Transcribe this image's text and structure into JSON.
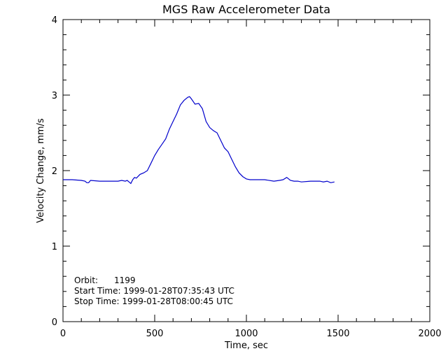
{
  "chart_data": {
    "type": "line",
    "title": "MGS Raw Accelerometer Data",
    "xlabel": "Time, sec",
    "ylabel": "Velocity Change, mm/s",
    "xlim": [
      0,
      2000
    ],
    "ylim": [
      0,
      4
    ],
    "xticks": [
      0,
      500,
      1000,
      1500,
      2000
    ],
    "xtick_labels": [
      "0",
      "500",
      "1000",
      "1500",
      "2000"
    ],
    "yticks": [
      0,
      1,
      2,
      3,
      4
    ],
    "ytick_labels": [
      "0",
      "1",
      "2",
      "3",
      "4"
    ],
    "grid": false,
    "legend": "none",
    "line_color": "#0000cc",
    "series": [
      {
        "x": [
          0,
          50,
          100,
          120,
          130,
          140,
          150,
          200,
          250,
          300,
          320,
          340,
          350,
          360,
          370,
          380,
          390,
          400,
          420,
          440,
          460,
          480,
          500,
          520,
          540,
          560,
          580,
          600,
          620,
          640,
          660,
          680,
          690,
          700,
          720,
          740,
          760,
          780,
          800,
          820,
          840,
          860,
          880,
          900,
          920,
          940,
          960,
          980,
          1000,
          1020,
          1050,
          1100,
          1150,
          1180,
          1200,
          1220,
          1240,
          1260,
          1280,
          1300,
          1350,
          1400,
          1420,
          1440,
          1460,
          1480
        ],
        "y": [
          1.88,
          1.88,
          1.87,
          1.86,
          1.84,
          1.84,
          1.87,
          1.86,
          1.86,
          1.86,
          1.87,
          1.86,
          1.87,
          1.85,
          1.83,
          1.88,
          1.91,
          1.9,
          1.95,
          1.97,
          2.0,
          2.1,
          2.2,
          2.28,
          2.35,
          2.42,
          2.55,
          2.65,
          2.75,
          2.87,
          2.93,
          2.97,
          2.98,
          2.95,
          2.88,
          2.89,
          2.82,
          2.65,
          2.57,
          2.53,
          2.5,
          2.4,
          2.3,
          2.25,
          2.15,
          2.05,
          1.97,
          1.92,
          1.89,
          1.88,
          1.88,
          1.88,
          1.86,
          1.87,
          1.88,
          1.91,
          1.87,
          1.86,
          1.86,
          1.85,
          1.86,
          1.86,
          1.85,
          1.86,
          1.84,
          1.85
        ]
      }
    ],
    "annotations": [
      "Orbit:      1199",
      "Start Time: 1999-01-28T07:35:43 UTC",
      "Stop Time: 1999-01-28T08:00:45 UTC"
    ]
  }
}
